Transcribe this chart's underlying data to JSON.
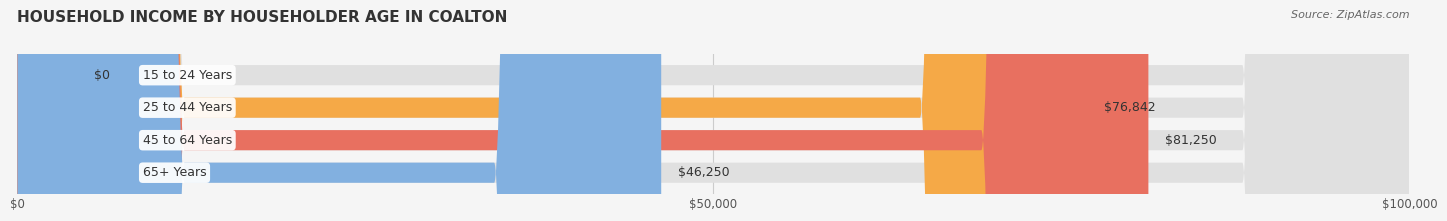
{
  "title": "HOUSEHOLD INCOME BY HOUSEHOLDER AGE IN COALTON",
  "source": "Source: ZipAtlas.com",
  "categories": [
    "15 to 24 Years",
    "25 to 44 Years",
    "45 to 64 Years",
    "65+ Years"
  ],
  "values": [
    0,
    76842,
    81250,
    46250
  ],
  "bar_colors": [
    "#f4a0b0",
    "#f5a947",
    "#e87060",
    "#82b0e0"
  ],
  "value_labels": [
    "$0",
    "$76,842",
    "$81,250",
    "$46,250"
  ],
  "xlim": [
    0,
    100000
  ],
  "xticks": [
    0,
    50000,
    100000
  ],
  "xtick_labels": [
    "$0",
    "$50,000",
    "$100,000"
  ],
  "background_color": "#f5f5f5",
  "bar_bg_color": "#e0e0e0",
  "title_fontsize": 11,
  "source_fontsize": 8,
  "label_fontsize": 9,
  "value_fontsize": 9,
  "bar_height": 0.62
}
